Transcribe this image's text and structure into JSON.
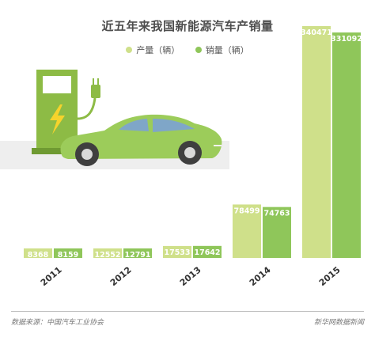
{
  "chart_data": {
    "type": "bar",
    "title": "近五年来我国新能源汽车产销量",
    "categories": [
      "2011",
      "2012",
      "2013",
      "2014",
      "2015"
    ],
    "series": [
      {
        "name": "产量（辆）",
        "values": [
          8368,
          12552,
          17533,
          78499,
          340471
        ],
        "color": "#cfe08a"
      },
      {
        "name": "销量（辆）",
        "values": [
          8159,
          12791,
          17642,
          74763,
          331092
        ],
        "color": "#8fc65a"
      }
    ],
    "legend_position": "top-center",
    "grid": false
  },
  "footer": {
    "source": "数据来源：中国汽车工业协会",
    "credit": "新华网数据新闻"
  }
}
